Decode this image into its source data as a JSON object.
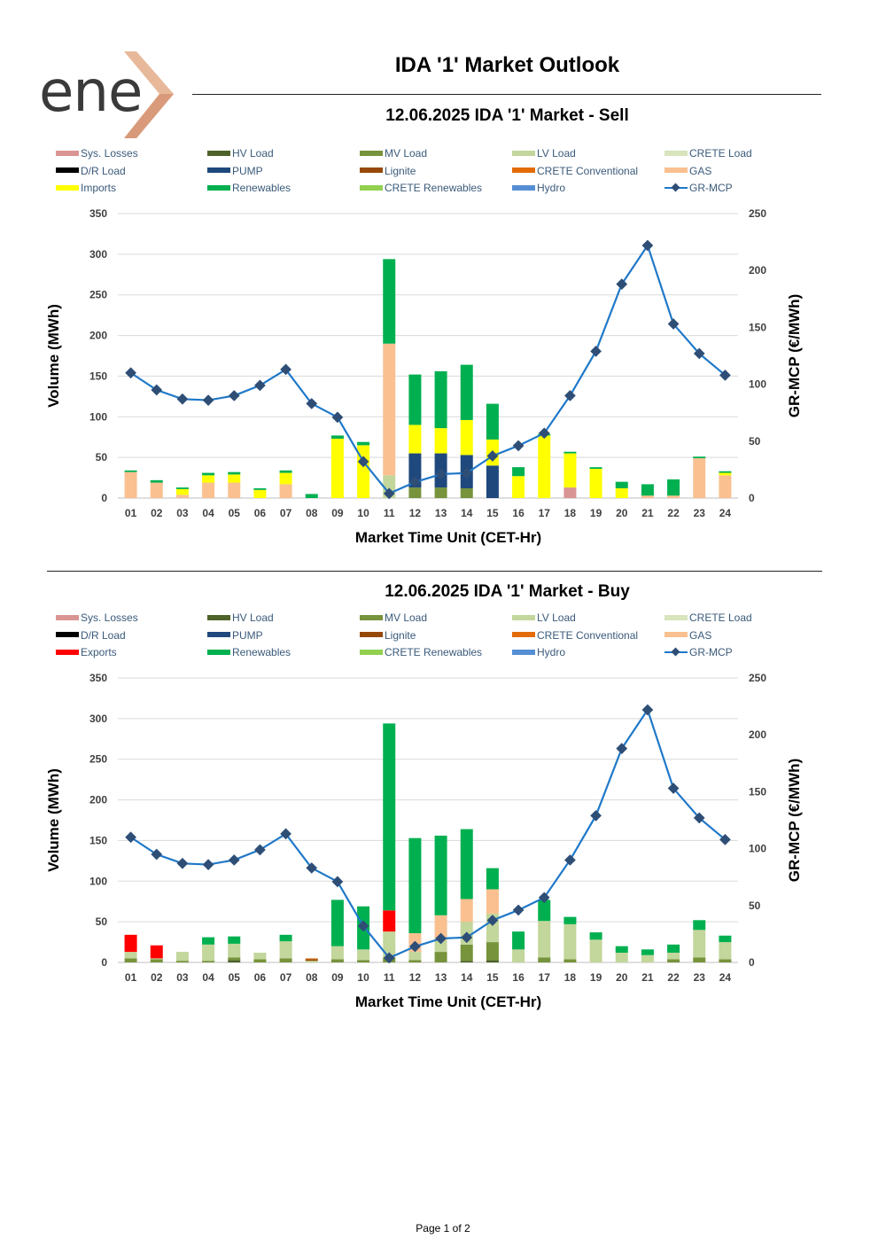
{
  "header": {
    "logo_text": "ene",
    "main_title": "IDA '1' Market Outlook"
  },
  "footer": {
    "page_label": "Page 1 of 2"
  },
  "colors": {
    "sys_losses": "#d99594",
    "hv_load": "#4f6228",
    "mv_load": "#77933c",
    "lv_load": "#c3d69b",
    "crete_load": "#d7e4bc",
    "dr_load": "#000000",
    "pump": "#1f497d",
    "lignite": "#974806",
    "crete_conventional": "#e36c09",
    "gas": "#fac090",
    "imports": "#ffff00",
    "exports": "#ff0000",
    "renewables": "#00b050",
    "crete_renewables": "#92d050",
    "hydro": "#558ed5",
    "mcp_line": "#1f78c8",
    "mcp_marker": "#2e4e76"
  },
  "chart_data": [
    {
      "type": "bar",
      "stacked": true,
      "title": "12.06.2025  IDA '1' Market - Sell",
      "xlabel": "Market Time Unit (CET-Hr)",
      "ylabel": "Volume (MWh)",
      "y2label": "GR-MCP (€/MWh)",
      "ylim": [
        0,
        350
      ],
      "yticks": [
        "0",
        "50",
        "100",
        "150",
        "200",
        "250",
        "300",
        "350"
      ],
      "y2lim": [
        0,
        250
      ],
      "y2ticks": [
        "0",
        "50",
        "100",
        "150",
        "200",
        "250"
      ],
      "grid": true,
      "categories": [
        "01",
        "02",
        "03",
        "04",
        "05",
        "06",
        "07",
        "08",
        "09",
        "10",
        "11",
        "12",
        "13",
        "14",
        "15",
        "16",
        "17",
        "18",
        "19",
        "20",
        "21",
        "22",
        "23",
        "24"
      ],
      "legend": [
        {
          "name": "Sys. Losses",
          "color": "#d99594",
          "kind": "bar"
        },
        {
          "name": "HV Load",
          "color": "#4f6228",
          "kind": "bar"
        },
        {
          "name": "MV Load",
          "color": "#77933c",
          "kind": "bar"
        },
        {
          "name": "LV Load",
          "color": "#c3d69b",
          "kind": "bar"
        },
        {
          "name": "CRETE Load",
          "color": "#d7e4bc",
          "kind": "bar"
        },
        {
          "name": "D/R Load",
          "color": "#000000",
          "kind": "bar"
        },
        {
          "name": "PUMP",
          "color": "#1f497d",
          "kind": "bar"
        },
        {
          "name": "Lignite",
          "color": "#974806",
          "kind": "bar"
        },
        {
          "name": "CRETE Conventional",
          "color": "#e36c09",
          "kind": "bar"
        },
        {
          "name": "GAS",
          "color": "#fac090",
          "kind": "bar"
        },
        {
          "name": "Imports",
          "color": "#ffff00",
          "kind": "bar"
        },
        {
          "name": "Renewables",
          "color": "#00b050",
          "kind": "bar"
        },
        {
          "name": "CRETE Renewables",
          "color": "#92d050",
          "kind": "bar"
        },
        {
          "name": "Hydro",
          "color": "#558ed5",
          "kind": "bar"
        },
        {
          "name": "GR-MCP",
          "color": "#1f78c8",
          "kind": "line"
        }
      ],
      "series": [
        {
          "name": "Sys. Losses",
          "color": "#d99594",
          "values": [
            0,
            0,
            0,
            0,
            0,
            0,
            0,
            0,
            0,
            0,
            0,
            0,
            0,
            0,
            0,
            0,
            0,
            13,
            0,
            0,
            0,
            0,
            0,
            0
          ]
        },
        {
          "name": "HV Load",
          "color": "#4f6228",
          "values": [
            0,
            0,
            0,
            0,
            0,
            0,
            0,
            0,
            0,
            0,
            0,
            0,
            0,
            0,
            0,
            0,
            0,
            0,
            0,
            0,
            0,
            0,
            0,
            0
          ]
        },
        {
          "name": "MV Load",
          "color": "#77933c",
          "values": [
            0,
            0,
            0,
            0,
            0,
            0,
            0,
            0,
            0,
            0,
            0,
            13,
            13,
            12,
            0,
            0,
            0,
            0,
            0,
            0,
            0,
            0,
            0,
            0
          ]
        },
        {
          "name": "LV Load",
          "color": "#c3d69b",
          "values": [
            0,
            0,
            0,
            0,
            0,
            0,
            0,
            0,
            0,
            0,
            28,
            0,
            0,
            0,
            0,
            0,
            0,
            0,
            0,
            0,
            0,
            0,
            0,
            0
          ]
        },
        {
          "name": "PUMP",
          "color": "#1f497d",
          "values": [
            0,
            0,
            0,
            0,
            0,
            0,
            0,
            0,
            0,
            0,
            0,
            42,
            42,
            41,
            40,
            0,
            0,
            0,
            0,
            0,
            0,
            0,
            0,
            0
          ]
        },
        {
          "name": "GAS",
          "color": "#fac090",
          "values": [
            32,
            19,
            4,
            19,
            19,
            0,
            17,
            0,
            0,
            0,
            162,
            0,
            0,
            0,
            0,
            0,
            0,
            0,
            0,
            0,
            3,
            3,
            49,
            28
          ]
        },
        {
          "name": "Imports",
          "color": "#ffff00",
          "values": [
            0,
            0,
            7,
            9,
            10,
            10,
            14,
            0,
            73,
            65,
            0,
            35,
            31,
            43,
            32,
            27,
            77,
            42,
            36,
            12,
            0,
            0,
            0,
            3
          ]
        },
        {
          "name": "Renewables",
          "color": "#00b050",
          "values": [
            2,
            3,
            2,
            3,
            3,
            2,
            3,
            5,
            4,
            4,
            104,
            62,
            70,
            68,
            44,
            11,
            2,
            2,
            2,
            8,
            14,
            20,
            2,
            2
          ]
        }
      ],
      "line": {
        "name": "GR-MCP",
        "values": [
          110,
          95,
          87,
          86,
          90,
          99,
          113,
          83,
          71,
          32,
          4,
          14,
          21,
          22,
          37,
          46,
          57,
          90,
          129,
          188,
          222,
          153,
          127,
          108
        ]
      }
    },
    {
      "type": "bar",
      "stacked": true,
      "title": "12.06.2025  IDA '1' Market - Buy",
      "xlabel": "Market Time Unit (CET-Hr)",
      "ylabel": "Volume (MWh)",
      "y2label": "GR-MCP (€/MWh)",
      "ylim": [
        0,
        350
      ],
      "yticks": [
        "0",
        "50",
        "100",
        "150",
        "200",
        "250",
        "300",
        "350"
      ],
      "y2lim": [
        0,
        250
      ],
      "y2ticks": [
        "0",
        "50",
        "100",
        "150",
        "200",
        "250"
      ],
      "grid": true,
      "categories": [
        "01",
        "02",
        "03",
        "04",
        "05",
        "06",
        "07",
        "08",
        "09",
        "10",
        "11",
        "12",
        "13",
        "14",
        "15",
        "16",
        "17",
        "18",
        "19",
        "20",
        "21",
        "22",
        "23",
        "24"
      ],
      "legend": [
        {
          "name": "Sys. Losses",
          "color": "#d99594",
          "kind": "bar"
        },
        {
          "name": "HV Load",
          "color": "#4f6228",
          "kind": "bar"
        },
        {
          "name": "MV Load",
          "color": "#77933c",
          "kind": "bar"
        },
        {
          "name": "LV Load",
          "color": "#c3d69b",
          "kind": "bar"
        },
        {
          "name": "CRETE Load",
          "color": "#d7e4bc",
          "kind": "bar"
        },
        {
          "name": "D/R Load",
          "color": "#000000",
          "kind": "bar"
        },
        {
          "name": "PUMP",
          "color": "#1f497d",
          "kind": "bar"
        },
        {
          "name": "Lignite",
          "color": "#974806",
          "kind": "bar"
        },
        {
          "name": "CRETE Conventional",
          "color": "#e36c09",
          "kind": "bar"
        },
        {
          "name": "GAS",
          "color": "#fac090",
          "kind": "bar"
        },
        {
          "name": "Exports",
          "color": "#ff0000",
          "kind": "bar"
        },
        {
          "name": "Renewables",
          "color": "#00b050",
          "kind": "bar"
        },
        {
          "name": "CRETE Renewables",
          "color": "#92d050",
          "kind": "bar"
        },
        {
          "name": "Hydro",
          "color": "#558ed5",
          "kind": "bar"
        },
        {
          "name": "GR-MCP",
          "color": "#1f78c8",
          "kind": "line"
        }
      ],
      "series": [
        {
          "name": "HV Load",
          "color": "#4f6228",
          "values": [
            0,
            0,
            0,
            0,
            3,
            0,
            0,
            0,
            0,
            0,
            0,
            0,
            0,
            2,
            3,
            0,
            0,
            0,
            0,
            0,
            0,
            0,
            0,
            0
          ]
        },
        {
          "name": "MV Load",
          "color": "#77933c",
          "values": [
            5,
            4,
            2,
            2,
            3,
            4,
            5,
            0,
            4,
            3,
            6,
            3,
            13,
            20,
            22,
            0,
            6,
            4,
            0,
            0,
            0,
            4,
            6,
            4
          ]
        },
        {
          "name": "Sys. Losses",
          "color": "#d99594",
          "values": [
            0,
            0,
            0,
            0,
            0,
            0,
            0,
            0,
            0,
            0,
            0,
            0,
            0,
            0,
            0,
            0,
            0,
            0,
            0,
            0,
            0,
            0,
            0,
            0
          ]
        },
        {
          "name": "LV Load",
          "color": "#c3d69b",
          "values": [
            8,
            1,
            11,
            20,
            17,
            8,
            21,
            2,
            16,
            13,
            32,
            10,
            15,
            28,
            35,
            16,
            45,
            43,
            28,
            12,
            9,
            8,
            34,
            21
          ]
        },
        {
          "name": "Lignite",
          "color": "#974806",
          "values": [
            0,
            0,
            0,
            0,
            0,
            0,
            0,
            2,
            0,
            0,
            0,
            0,
            0,
            0,
            0,
            0,
            0,
            0,
            0,
            0,
            0,
            0,
            0,
            0
          ]
        },
        {
          "name": "CRETE Conventional",
          "color": "#e36c09",
          "values": [
            0,
            0,
            0,
            0,
            0,
            0,
            0,
            1,
            0,
            0,
            0,
            0,
            0,
            0,
            0,
            0,
            0,
            0,
            0,
            0,
            0,
            0,
            0,
            0
          ]
        },
        {
          "name": "GAS",
          "color": "#fac090",
          "values": [
            0,
            0,
            0,
            0,
            0,
            0,
            0,
            0,
            0,
            0,
            0,
            23,
            30,
            28,
            30,
            0,
            0,
            0,
            0,
            0,
            0,
            0,
            0,
            0
          ]
        },
        {
          "name": "Exports",
          "color": "#ff0000",
          "values": [
            21,
            16,
            0,
            0,
            0,
            0,
            0,
            0,
            0,
            0,
            26,
            0,
            0,
            0,
            0,
            0,
            0,
            0,
            0,
            0,
            0,
            0,
            0,
            0
          ]
        },
        {
          "name": "Renewables",
          "color": "#00b050",
          "values": [
            0,
            0,
            0,
            9,
            9,
            0,
            8,
            0,
            57,
            53,
            230,
            117,
            98,
            86,
            26,
            22,
            26,
            9,
            9,
            8,
            7,
            10,
            12,
            8
          ]
        }
      ],
      "line": {
        "name": "GR-MCP",
        "values": [
          110,
          95,
          87,
          86,
          90,
          99,
          113,
          83,
          71,
          32,
          4,
          14,
          21,
          22,
          37,
          46,
          57,
          90,
          129,
          188,
          222,
          153,
          127,
          108
        ]
      }
    }
  ]
}
